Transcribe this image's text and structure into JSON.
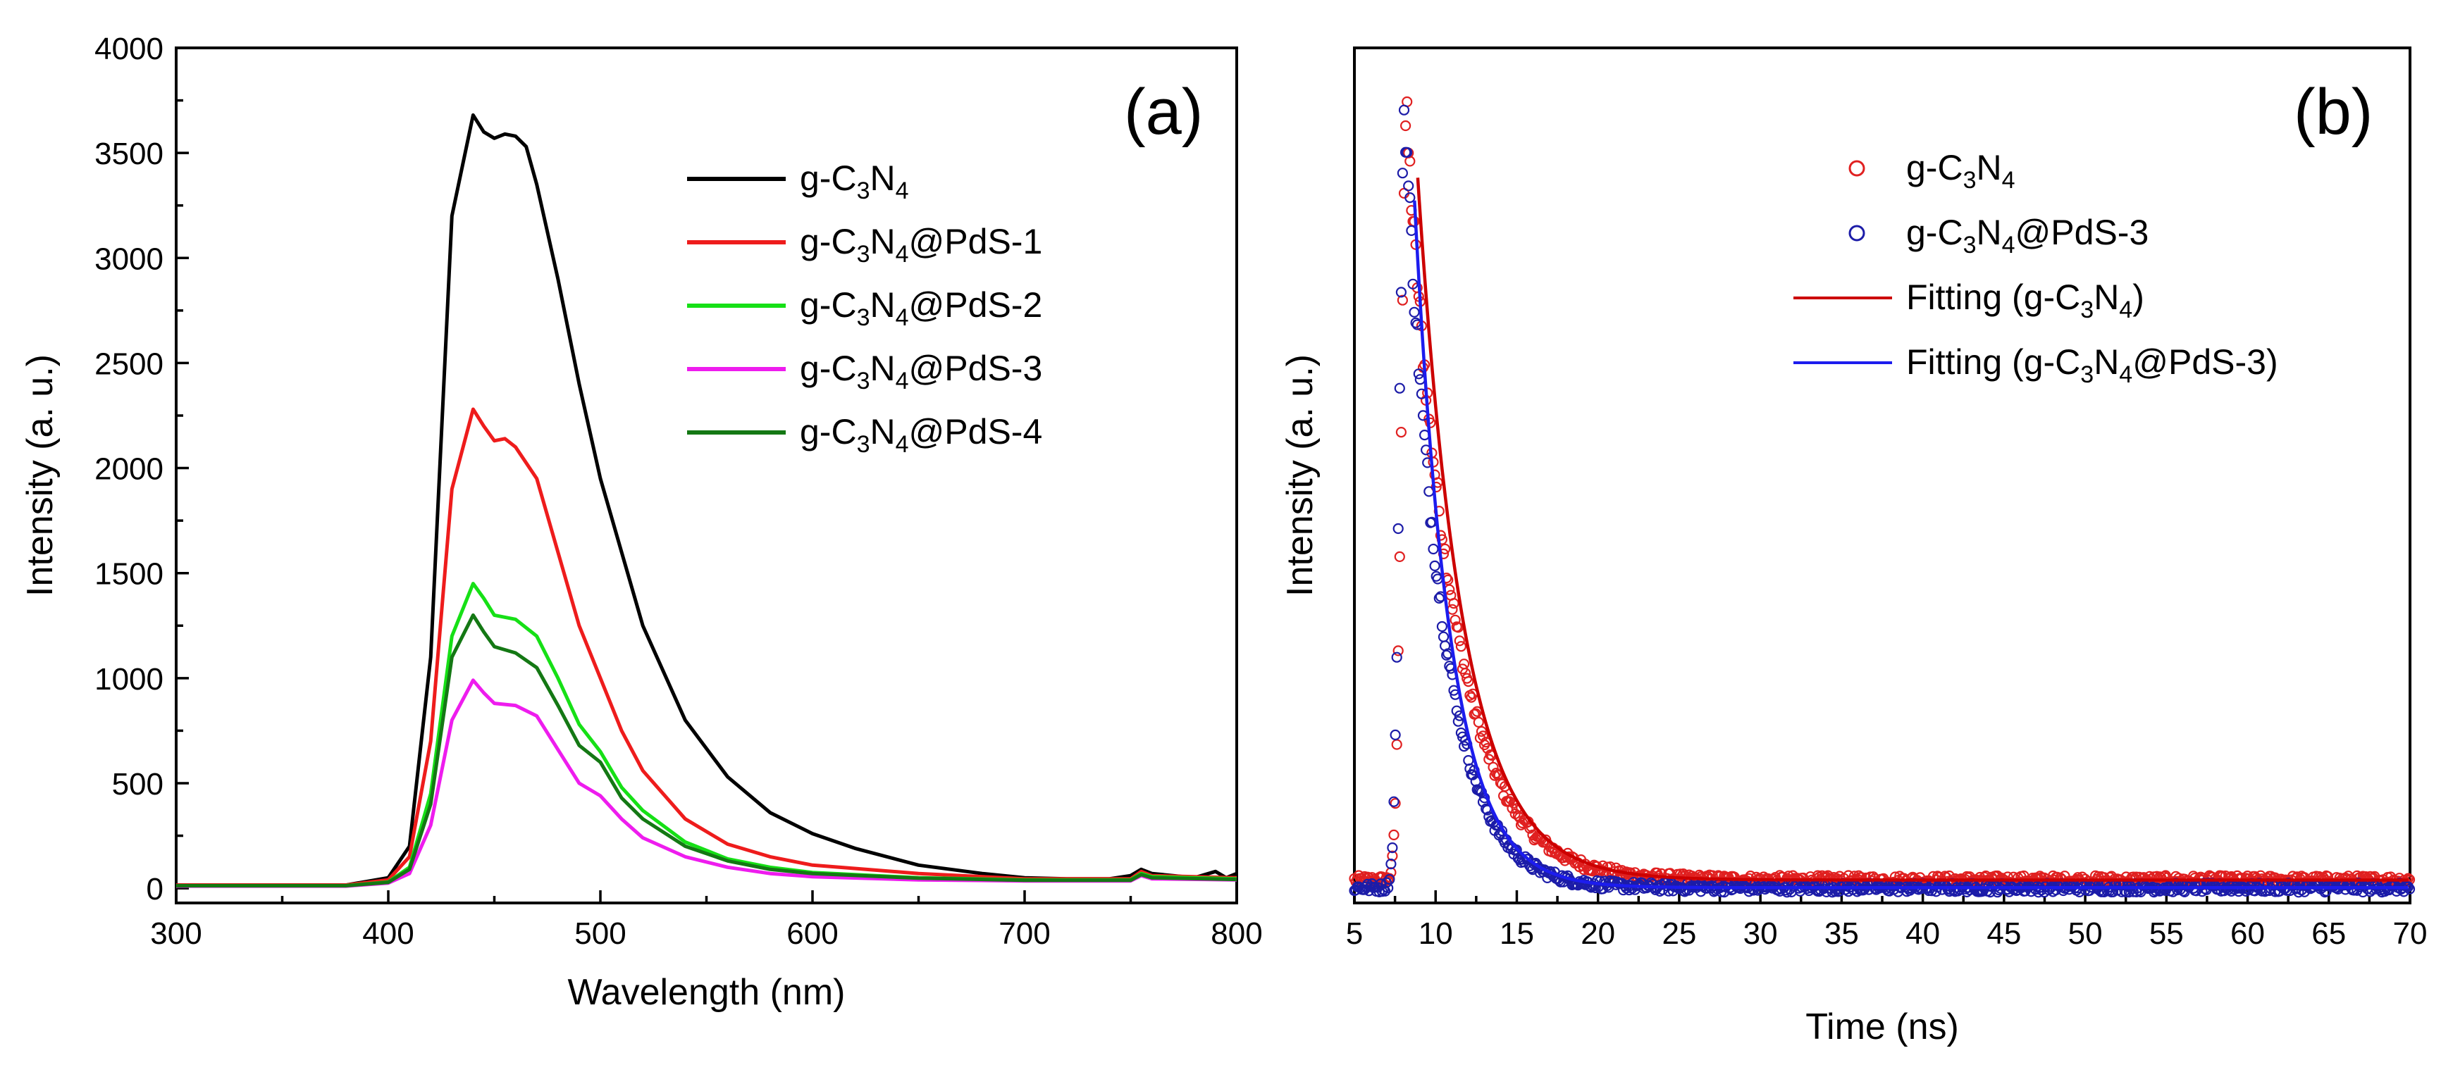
{
  "chart_data": [
    {
      "type": "line",
      "panel_label": "(a)",
      "xlabel": "Wavelength (nm)",
      "ylabel": "Intensity (a. u.)",
      "xlim": [
        300,
        800
      ],
      "ylim": [
        -70,
        4000
      ],
      "xticks": [
        300,
        400,
        500,
        600,
        700,
        800
      ],
      "yticks": [
        0,
        500,
        1000,
        1500,
        2000,
        2500,
        3000,
        3500,
        4000
      ],
      "legend_position": "top-right",
      "series": [
        {
          "name": "g-C3N4",
          "label_parts": [
            "g-C",
            "3",
            "N",
            "4",
            ""
          ],
          "color": "#000000",
          "x": [
            300,
            380,
            400,
            410,
            420,
            430,
            440,
            445,
            450,
            455,
            460,
            465,
            470,
            480,
            490,
            500,
            510,
            520,
            540,
            560,
            580,
            600,
            620,
            650,
            680,
            700,
            720,
            740,
            750,
            755,
            760,
            770,
            780,
            790,
            795,
            800
          ],
          "y": [
            15,
            15,
            50,
            200,
            1100,
            3200,
            3680,
            3600,
            3570,
            3590,
            3580,
            3530,
            3350,
            2900,
            2400,
            1950,
            1600,
            1250,
            800,
            530,
            360,
            260,
            190,
            110,
            70,
            50,
            45,
            45,
            60,
            90,
            70,
            60,
            50,
            80,
            50,
            70
          ]
        },
        {
          "name": "g-C3N4@PdS-1",
          "label_parts": [
            "g-C",
            "3",
            "N",
            "4",
            "@PdS-1"
          ],
          "color": "#ee1c1c",
          "x": [
            300,
            380,
            400,
            410,
            420,
            430,
            440,
            445,
            450,
            455,
            460,
            470,
            480,
            490,
            500,
            510,
            520,
            540,
            560,
            580,
            600,
            650,
            700,
            750,
            755,
            760,
            800
          ],
          "y": [
            15,
            15,
            40,
            150,
            700,
            1900,
            2280,
            2200,
            2130,
            2140,
            2100,
            1950,
            1600,
            1250,
            1000,
            750,
            560,
            330,
            210,
            150,
            110,
            70,
            45,
            45,
            80,
            60,
            50
          ]
        },
        {
          "name": "g-C3N4@PdS-2",
          "label_parts": [
            "g-C",
            "3",
            "N",
            "4",
            "@PdS-2"
          ],
          "color": "#16e016",
          "x": [
            300,
            380,
            400,
            410,
            420,
            430,
            440,
            445,
            450,
            460,
            470,
            480,
            490,
            500,
            510,
            520,
            540,
            560,
            580,
            600,
            650,
            700,
            750,
            755,
            760,
            800
          ],
          "y": [
            12,
            12,
            30,
            100,
            450,
            1200,
            1450,
            1380,
            1300,
            1280,
            1200,
            1000,
            780,
            650,
            480,
            370,
            220,
            140,
            100,
            75,
            50,
            40,
            40,
            70,
            55,
            45
          ]
        },
        {
          "name": "g-C3N4@PdS-3",
          "label_parts": [
            "g-C",
            "3",
            "N",
            "4",
            "@PdS-3"
          ],
          "color": "#ee1cee",
          "x": [
            300,
            380,
            400,
            410,
            420,
            430,
            440,
            445,
            450,
            460,
            470,
            480,
            490,
            500,
            510,
            520,
            540,
            560,
            580,
            600,
            650,
            700,
            750,
            755,
            760,
            800
          ],
          "y": [
            10,
            10,
            25,
            70,
            300,
            800,
            990,
            930,
            880,
            870,
            820,
            660,
            500,
            440,
            330,
            240,
            150,
            100,
            70,
            55,
            40,
            35,
            35,
            60,
            45,
            40
          ]
        },
        {
          "name": "g-C3N4@PdS-4",
          "label_parts": [
            "g-C",
            "3",
            "N",
            "4",
            "@PdS-4"
          ],
          "color": "#147814",
          "x": [
            300,
            380,
            400,
            410,
            420,
            430,
            440,
            445,
            450,
            460,
            470,
            480,
            490,
            500,
            510,
            520,
            540,
            560,
            580,
            600,
            650,
            700,
            750,
            755,
            760,
            800
          ],
          "y": [
            12,
            12,
            28,
            90,
            400,
            1100,
            1300,
            1220,
            1150,
            1120,
            1050,
            870,
            680,
            600,
            430,
            330,
            200,
            130,
            90,
            70,
            48,
            38,
            38,
            65,
            50,
            42
          ]
        }
      ]
    },
    {
      "type": "scatter",
      "panel_label": "(b)",
      "xlabel": "Time (ns)",
      "ylabel": "Intensity (a. u.)",
      "xlim": [
        5,
        70
      ],
      "ylim": [
        -0.02,
        1.1
      ],
      "xticks": [
        5,
        10,
        15,
        20,
        25,
        30,
        35,
        40,
        45,
        50,
        55,
        60,
        65,
        70
      ],
      "legend_position": "top-right",
      "series": [
        {
          "name": "g-C3N4",
          "label_parts": [
            "g-C",
            "3",
            "N",
            "4",
            ""
          ],
          "color": "#e02020",
          "kind": "points",
          "peak_time": 8.2,
          "peak_value": 1.0,
          "decay_tau_ns": 2.8,
          "baseline": 0.01
        },
        {
          "name": "g-C3N4@PdS-3",
          "label_parts": [
            "g-C",
            "3",
            "N",
            "4",
            "@PdS-3"
          ],
          "color": "#1c1ca8",
          "kind": "points",
          "peak_time": 8.1,
          "peak_value": 1.02,
          "decay_tau_ns": 2.2,
          "baseline": 0.0
        },
        {
          "name": "Fitting (g-C3N4)",
          "label_parts": [
            "Fitting (g-C",
            "3",
            "N",
            "4",
            ")"
          ],
          "color": "#cc0000",
          "kind": "line",
          "peak_time": 8.9,
          "peak_value": 0.92,
          "decay_tau_ns": 2.8,
          "baseline": 0.01
        },
        {
          "name": "Fitting (g-C3N4@PdS-3)",
          "label_parts": [
            "Fitting (g-C",
            "3",
            "N",
            "4",
            "@PdS-3)"
          ],
          "color": "#1c1cee",
          "kind": "line",
          "peak_time": 8.7,
          "peak_value": 0.9,
          "decay_tau_ns": 2.2,
          "baseline": 0.0
        }
      ]
    }
  ]
}
